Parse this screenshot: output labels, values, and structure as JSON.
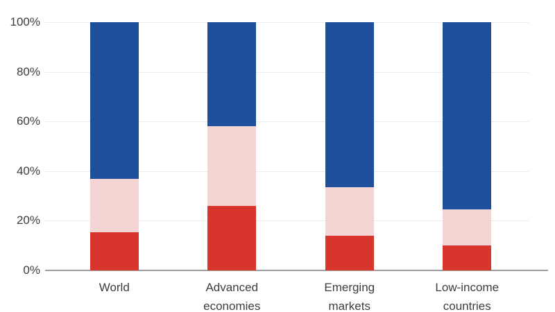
{
  "chart_data": {
    "type": "bar",
    "stacked": true,
    "categories": [
      "World",
      "Advanced economies",
      "Emerging markets",
      "Low-income countries"
    ],
    "series": [
      {
        "name": "red-bottom-segment",
        "color": "#d8362c",
        "values": [
          15.5,
          26,
          14,
          10
        ]
      },
      {
        "name": "pink-middle-segment",
        "color": "#f4d5d3",
        "values": [
          21.5,
          32,
          19.5,
          14.5
        ]
      },
      {
        "name": "blue-top-segment",
        "color": "#1e4f9c",
        "values": [
          63,
          42,
          66.5,
          75.5
        ]
      }
    ],
    "unit": "%",
    "yticks": [
      "0%",
      "20%",
      "40%",
      "60%",
      "80%",
      "100%"
    ],
    "ylim": [
      0,
      100
    ],
    "grid": "horizontal",
    "legend": "none"
  },
  "style_colors": {
    "background": "#ffffff",
    "gridline": "#ececec",
    "baseline": "#9e9e9e",
    "text": "#3d3d3d"
  }
}
